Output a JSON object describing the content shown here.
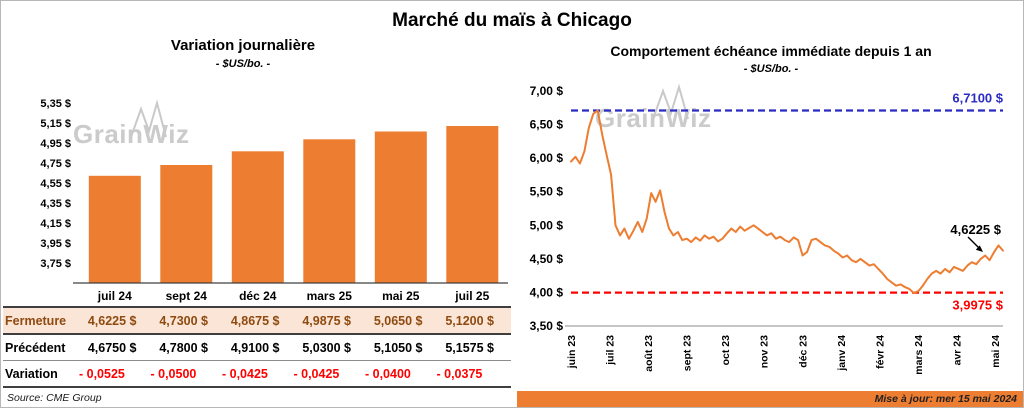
{
  "page": {
    "title": "Marché du maïs à Chicago",
    "source": "Source: CME Group",
    "updated": "Mise à jour: mer 15 mai 2024",
    "watermark": "GrainWiz"
  },
  "left_panel": {
    "title": "Variation journalière",
    "subtitle": "- $US/bo. -"
  },
  "right_panel": {
    "title": "Comportement échéance immédiate depuis 1 an",
    "subtitle": "- $US/bo. -"
  },
  "table": {
    "columns": [
      "juil 24",
      "sept 24",
      "déc 24",
      "mars 25",
      "mai 25",
      "juil 25"
    ],
    "rows": [
      {
        "label": "Fermeture",
        "style": "fermeture",
        "values": [
          "4,6225  $",
          "4,7300  $",
          "4,8675  $",
          "4,9875  $",
          "5,0650  $",
          "5,1200  $"
        ]
      },
      {
        "label": "Précédent",
        "style": "normal",
        "values": [
          "4,6750  $",
          "4,7800  $",
          "4,9100  $",
          "5,0300  $",
          "5,1050  $",
          "5,1575  $"
        ]
      },
      {
        "label": "Variation",
        "style": "negative",
        "values": [
          "- 0,0525",
          "- 0,0500",
          "- 0,0425",
          "- 0,0425",
          "- 0,0400",
          "- 0,0375"
        ]
      }
    ]
  },
  "chart_data": [
    {
      "type": "bar",
      "title": "Variation journalière",
      "subtitle": "- $US/bo. -",
      "ylabel": "$US/bo.",
      "categories": [
        "juil 24",
        "sept 24",
        "déc 24",
        "mars 25",
        "mai 25",
        "juil 25"
      ],
      "values": [
        4.6225,
        4.73,
        4.8675,
        4.9875,
        5.065,
        5.12
      ],
      "ylim": [
        3.55,
        5.45
      ],
      "yticks": [
        5.35,
        5.15,
        4.95,
        4.75,
        4.55,
        4.35,
        4.15,
        3.95,
        3.75
      ],
      "ytick_labels": [
        "5,35 $",
        "5,15 $",
        "4,95 $",
        "4,75 $",
        "4,55 $",
        "4,35 $",
        "4,15 $",
        "3,95 $",
        "3,75 $"
      ],
      "bar_color": "#ED7D31",
      "grid": false
    },
    {
      "type": "line",
      "title": "Comportement échéance immédiate depuis 1 an",
      "subtitle": "- $US/bo. -",
      "ylabel": "$US/bo.",
      "x_labels": [
        "juin 23",
        "juil 23",
        "août 23",
        "sept 23",
        "oct 23",
        "nov 23",
        "déc 23",
        "janv 24",
        "févr 24",
        "mars 24",
        "avr 24",
        "mai 24"
      ],
      "ylim": [
        3.5,
        7.0
      ],
      "yticks": [
        7.0,
        6.5,
        6.0,
        5.5,
        5.0,
        4.5,
        4.0,
        3.5
      ],
      "ytick_labels": [
        "7,00 $",
        "6,50 $",
        "6,00 $",
        "5,50 $",
        "5,00 $",
        "4,50 $",
        "4,00 $",
        "3,50 $"
      ],
      "line_color": "#ED7D31",
      "grid": false,
      "reference_lines": [
        {
          "value": 6.71,
          "label": "6,7100 $",
          "color": "#2B2BC4",
          "position": "above"
        },
        {
          "value": 3.9975,
          "label": "3,9975 $",
          "color": "#FF0000",
          "position": "below"
        }
      ],
      "last_point_label": "4,6225 $",
      "values": [
        5.95,
        6.02,
        5.92,
        6.1,
        6.45,
        6.66,
        6.71,
        6.35,
        6.05,
        5.75,
        5.0,
        4.85,
        4.95,
        4.8,
        4.92,
        5.05,
        4.9,
        5.1,
        5.48,
        5.35,
        5.52,
        5.2,
        4.95,
        4.85,
        4.9,
        4.78,
        4.8,
        4.75,
        4.82,
        4.77,
        4.85,
        4.8,
        4.83,
        4.76,
        4.8,
        4.88,
        4.95,
        4.9,
        4.98,
        4.92,
        4.96,
        5.0,
        4.95,
        4.9,
        4.85,
        4.88,
        4.8,
        4.83,
        4.78,
        4.75,
        4.82,
        4.78,
        4.55,
        4.6,
        4.78,
        4.8,
        4.75,
        4.7,
        4.68,
        4.62,
        4.58,
        4.52,
        4.55,
        4.48,
        4.45,
        4.5,
        4.45,
        4.4,
        4.42,
        4.35,
        4.28,
        4.2,
        4.15,
        4.1,
        4.12,
        4.08,
        4.05,
        3.99,
        4.02,
        4.1,
        4.2,
        4.28,
        4.32,
        4.28,
        4.35,
        4.3,
        4.38,
        4.35,
        4.32,
        4.4,
        4.45,
        4.42,
        4.5,
        4.55,
        4.48,
        4.6,
        4.7,
        4.6225
      ]
    }
  ]
}
